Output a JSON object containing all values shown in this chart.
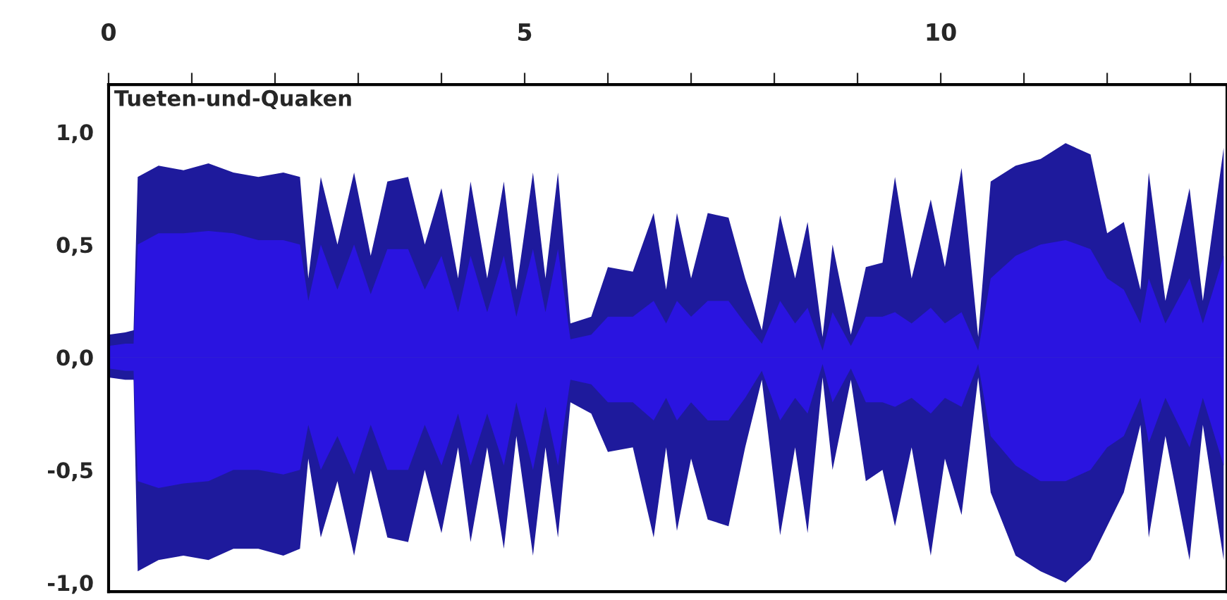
{
  "chart_data": {
    "type": "area",
    "title": "Tueten-und-Quaken",
    "x": [
      0.0,
      0.2,
      0.3,
      0.35,
      0.6,
      0.9,
      1.2,
      1.5,
      1.8,
      2.1,
      2.3,
      2.4,
      2.55,
      2.75,
      2.95,
      3.15,
      3.35,
      3.6,
      3.8,
      4.0,
      4.2,
      4.35,
      4.55,
      4.75,
      4.9,
      5.1,
      5.25,
      5.4,
      5.55,
      5.8,
      6.0,
      6.3,
      6.55,
      6.7,
      6.83,
      7.0,
      7.2,
      7.45,
      7.65,
      7.85,
      8.07,
      8.25,
      8.4,
      8.58,
      8.7,
      8.92,
      9.1,
      9.3,
      9.45,
      9.65,
      9.88,
      10.05,
      10.25,
      10.45,
      10.6,
      10.9,
      11.2,
      11.5,
      11.8,
      12.0,
      12.2,
      12.4,
      12.5,
      12.7,
      12.99,
      13.15,
      13.4
    ],
    "series": [
      {
        "color": "#1e1a9c",
        "values": [
          0.1,
          0.11,
          0.12,
          0.8,
          0.85,
          0.83,
          0.86,
          0.82,
          0.8,
          0.82,
          0.8,
          0.35,
          0.8,
          0.5,
          0.82,
          0.45,
          0.78,
          0.8,
          0.5,
          0.75,
          0.35,
          0.78,
          0.35,
          0.78,
          0.3,
          0.82,
          0.35,
          0.82,
          0.15,
          0.18,
          0.4,
          0.38,
          0.64,
          0.3,
          0.64,
          0.35,
          0.64,
          0.62,
          0.35,
          0.12,
          0.63,
          0.35,
          0.6,
          0.09,
          0.5,
          0.1,
          0.4,
          0.42,
          0.8,
          0.35,
          0.7,
          0.4,
          0.84,
          0.09,
          0.78,
          0.85,
          0.88,
          0.95,
          0.9,
          0.55,
          0.6,
          0.3,
          0.82,
          0.25,
          0.75,
          0.25,
          0.93
        ]
      },
      {
        "color": "#1e1a9c",
        "values": [
          -0.09,
          -0.1,
          -0.1,
          -0.95,
          -0.9,
          -0.88,
          -0.9,
          -0.85,
          -0.85,
          -0.88,
          -0.85,
          -0.45,
          -0.8,
          -0.55,
          -0.88,
          -0.5,
          -0.8,
          -0.82,
          -0.5,
          -0.78,
          -0.4,
          -0.82,
          -0.4,
          -0.85,
          -0.35,
          -0.88,
          -0.4,
          -0.8,
          -0.2,
          -0.25,
          -0.42,
          -0.4,
          -0.8,
          -0.4,
          -0.77,
          -0.45,
          -0.72,
          -0.75,
          -0.4,
          -0.1,
          -0.79,
          -0.4,
          -0.78,
          -0.09,
          -0.5,
          -0.1,
          -0.55,
          -0.5,
          -0.75,
          -0.4,
          -0.88,
          -0.45,
          -0.7,
          -0.09,
          -0.6,
          -0.88,
          -0.95,
          -1.0,
          -0.9,
          -0.75,
          -0.6,
          -0.3,
          -0.8,
          -0.35,
          -0.9,
          -0.3,
          -0.9
        ]
      },
      {
        "color": "#2a14e0",
        "values": [
          0.05,
          0.06,
          0.06,
          0.5,
          0.55,
          0.55,
          0.56,
          0.55,
          0.52,
          0.52,
          0.5,
          0.25,
          0.5,
          0.3,
          0.5,
          0.28,
          0.48,
          0.48,
          0.3,
          0.45,
          0.2,
          0.45,
          0.2,
          0.45,
          0.18,
          0.48,
          0.2,
          0.48,
          0.08,
          0.1,
          0.18,
          0.18,
          0.25,
          0.15,
          0.25,
          0.18,
          0.25,
          0.25,
          0.15,
          0.06,
          0.25,
          0.15,
          0.22,
          0.03,
          0.2,
          0.05,
          0.18,
          0.18,
          0.2,
          0.15,
          0.22,
          0.15,
          0.2,
          0.03,
          0.35,
          0.45,
          0.5,
          0.52,
          0.48,
          0.35,
          0.3,
          0.15,
          0.35,
          0.15,
          0.35,
          0.15,
          0.45
        ]
      },
      {
        "color": "#2a14e0",
        "values": [
          -0.05,
          -0.06,
          -0.06,
          -0.55,
          -0.58,
          -0.56,
          -0.55,
          -0.5,
          -0.5,
          -0.52,
          -0.5,
          -0.3,
          -0.5,
          -0.35,
          -0.52,
          -0.3,
          -0.5,
          -0.5,
          -0.3,
          -0.48,
          -0.25,
          -0.48,
          -0.25,
          -0.48,
          -0.2,
          -0.5,
          -0.22,
          -0.48,
          -0.1,
          -0.12,
          -0.2,
          -0.2,
          -0.28,
          -0.18,
          -0.28,
          -0.2,
          -0.28,
          -0.28,
          -0.18,
          -0.06,
          -0.28,
          -0.18,
          -0.25,
          -0.03,
          -0.2,
          -0.05,
          -0.2,
          -0.2,
          -0.22,
          -0.18,
          -0.25,
          -0.18,
          -0.22,
          -0.03,
          -0.35,
          -0.48,
          -0.55,
          -0.55,
          -0.5,
          -0.4,
          -0.35,
          -0.18,
          -0.38,
          -0.18,
          -0.4,
          -0.18,
          -0.48
        ]
      }
    ],
    "xlim": [
      0,
      13.44
    ],
    "xticks": [
      0,
      {
        "value": 1,
        "label": null
      },
      {
        "value": 2,
        "label": null
      },
      {
        "value": 3,
        "label": null
      },
      {
        "value": 4,
        "label": null
      },
      5,
      {
        "value": 6,
        "label": null
      },
      {
        "value": 7,
        "label": null
      },
      {
        "value": 8,
        "label": null
      },
      {
        "value": 9,
        "label": null
      },
      10,
      {
        "value": 11,
        "label": null
      },
      {
        "value": 12,
        "label": null
      },
      {
        "value": 13,
        "label": null
      }
    ],
    "ylim": [
      -1.04,
      1.21
    ],
    "yticks": [
      {
        "value": 1,
        "label": "1,0"
      },
      {
        "value": 0.5,
        "label": "0,5"
      },
      {
        "value": 0,
        "label": "0,0"
      },
      {
        "value": -0.5,
        "label": "-0,5"
      },
      {
        "value": -1,
        "label": "-1,0"
      }
    ],
    "grid": false,
    "legend": false
  }
}
